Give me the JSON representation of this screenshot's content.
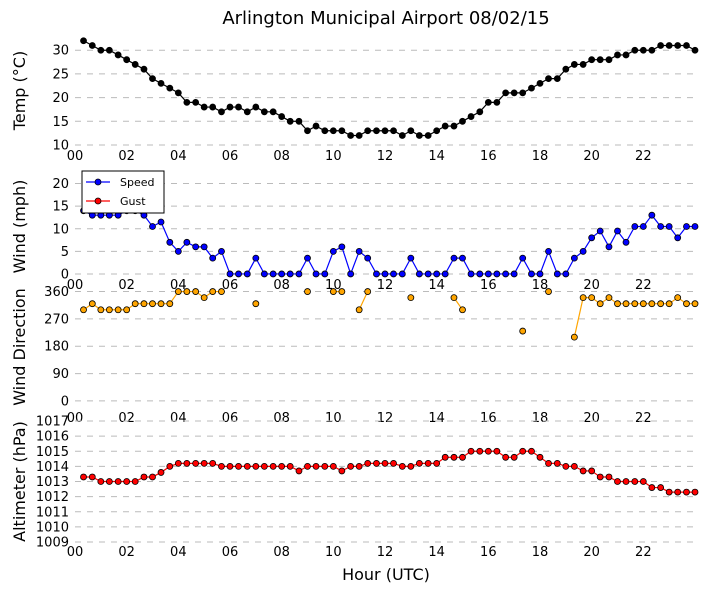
{
  "chart_data": {
    "type": "line",
    "title": "Arlington Municipal Airport 08/02/15",
    "xlabel": "Hour (UTC)",
    "xlim": [
      0,
      24
    ],
    "x_tick_labels": [
      "00",
      "02",
      "04",
      "06",
      "08",
      "10",
      "12",
      "14",
      "16",
      "18",
      "20",
      "22"
    ],
    "x": [
      0.33,
      0.67,
      1.0,
      1.33,
      1.67,
      2.0,
      2.33,
      2.67,
      3.0,
      3.33,
      3.67,
      4.0,
      4.33,
      4.67,
      5.0,
      5.33,
      5.67,
      6.0,
      6.33,
      6.67,
      7.0,
      7.33,
      7.67,
      8.0,
      8.33,
      8.67,
      9.0,
      9.33,
      9.67,
      10.0,
      10.33,
      10.67,
      11.0,
      11.33,
      11.67,
      12.0,
      12.33,
      12.67,
      13.0,
      13.33,
      13.67,
      14.0,
      14.33,
      14.67,
      15.0,
      15.33,
      15.67,
      16.0,
      16.33,
      16.67,
      17.0,
      17.33,
      17.67,
      18.0,
      18.33,
      18.67,
      19.0,
      19.33,
      19.67,
      20.0,
      20.33,
      20.67,
      21.0,
      21.33,
      21.67,
      22.0,
      22.33,
      22.67,
      23.0,
      23.33,
      23.67,
      24.0
    ],
    "panels": [
      {
        "id": "temp",
        "ylabel": "Temp (°C)",
        "ylim": [
          10,
          33
        ],
        "y_ticks": [
          10,
          15,
          20,
          25,
          30
        ],
        "series": [
          {
            "name": "Temp",
            "color": "#000000",
            "values": [
              32,
              31,
              30,
              30,
              29,
              28,
              27,
              26,
              24,
              23,
              22,
              21,
              19,
              19,
              18,
              18,
              17,
              18,
              18,
              17,
              18,
              17,
              17,
              16,
              15,
              15,
              13,
              14,
              13,
              13,
              13,
              12,
              12,
              13,
              13,
              13,
              13,
              12,
              13,
              12,
              12,
              13,
              14,
              14,
              15,
              16,
              17,
              19,
              19,
              21,
              21,
              21,
              22,
              23,
              24,
              24,
              26,
              27,
              27,
              28,
              28,
              28,
              29,
              29,
              30,
              30,
              30,
              31,
              31,
              31,
              31,
              30
            ]
          }
        ]
      },
      {
        "id": "wind",
        "ylabel": "Wind (mph)",
        "ylim": [
          -2,
          23
        ],
        "y_ticks": [
          0,
          5,
          10,
          15,
          20
        ],
        "legend": [
          "Speed",
          "Gust"
        ],
        "series": [
          {
            "name": "Speed",
            "color": "#0000ff",
            "values": [
              14,
              13,
              13,
              13,
              13,
              14,
              14,
              13,
              10.5,
              11.5,
              7,
              5,
              7,
              6,
              6,
              3.5,
              5,
              0,
              0,
              0,
              3.5,
              0,
              0,
              0,
              0,
              0,
              3.5,
              0,
              0,
              5,
              6,
              0,
              5,
              3.5,
              0,
              0,
              0,
              0,
              3.5,
              0,
              0,
              0,
              0,
              3.5,
              3.5,
              0,
              0,
              0,
              0,
              0,
              0,
              3.5,
              0,
              0,
              5,
              0,
              0,
              3.5,
              5,
              8,
              9.5,
              6,
              9.5,
              7,
              10.5,
              10.5,
              13,
              10.5,
              10.5,
              8,
              10.5,
              10.5
            ]
          },
          {
            "name": "Gust",
            "color": "#ff0000",
            "values": []
          }
        ]
      },
      {
        "id": "dir",
        "ylabel": "Wind Direction",
        "ylim": [
          -20,
          375
        ],
        "y_ticks": [
          0,
          90,
          180,
          270,
          360
        ],
        "y_tick_labels": [
          "0",
          "90",
          "180",
          "270",
          "360"
        ],
        "series": [
          {
            "name": "Direction",
            "color": "#ffa500",
            "values": [
              300,
              320,
              300,
              300,
              300,
              300,
              320,
              320,
              320,
              320,
              320,
              360,
              360,
              360,
              340,
              360,
              360,
              null,
              null,
              null,
              320,
              null,
              null,
              null,
              null,
              null,
              360,
              null,
              null,
              360,
              360,
              null,
              300,
              360,
              null,
              null,
              null,
              null,
              340,
              null,
              null,
              null,
              null,
              340,
              300,
              null,
              null,
              null,
              null,
              null,
              null,
              230,
              null,
              null,
              360,
              null,
              null,
              210,
              340,
              340,
              320,
              340,
              320,
              320,
              320,
              320,
              320,
              320,
              320,
              340,
              320,
              320
            ]
          }
        ]
      },
      {
        "id": "alt",
        "ylabel": "Altimeter (hPa)",
        "ylim": [
          1009,
          1017
        ],
        "y_ticks": [
          1009,
          1010,
          1011,
          1012,
          1013,
          1014,
          1015,
          1016,
          1017
        ],
        "series": [
          {
            "name": "Altimeter",
            "color": "#ff0000",
            "values": [
              1013.3,
              1013.3,
              1013.0,
              1013.0,
              1013.0,
              1013.0,
              1013.0,
              1013.3,
              1013.3,
              1013.6,
              1014.0,
              1014.2,
              1014.2,
              1014.2,
              1014.2,
              1014.2,
              1014.0,
              1014.0,
              1014.0,
              1014.0,
              1014.0,
              1014.0,
              1014.0,
              1014.0,
              1014.0,
              1013.7,
              1014.0,
              1014.0,
              1014.0,
              1014.0,
              1013.7,
              1014.0,
              1014.0,
              1014.2,
              1014.2,
              1014.2,
              1014.2,
              1014.0,
              1014.0,
              1014.2,
              1014.2,
              1014.2,
              1014.6,
              1014.6,
              1014.6,
              1015.0,
              1015.0,
              1015.0,
              1015.0,
              1014.6,
              1014.6,
              1015.0,
              1015.0,
              1014.6,
              1014.2,
              1014.2,
              1014.0,
              1014.0,
              1013.7,
              1013.7,
              1013.3,
              1013.3,
              1013.0,
              1013.0,
              1013.0,
              1013.0,
              1012.6,
              1012.6,
              1012.3,
              1012.3,
              1012.3,
              1012.3
            ]
          }
        ]
      }
    ]
  }
}
